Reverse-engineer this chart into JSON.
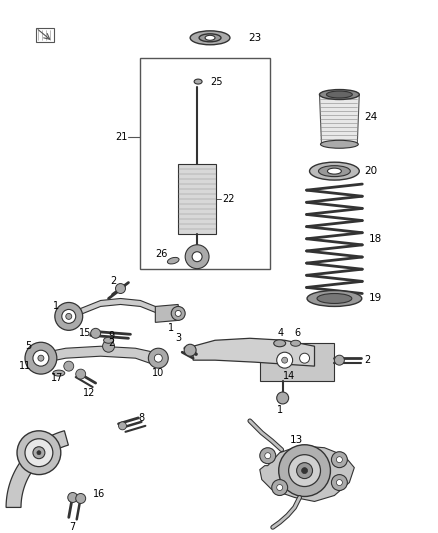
{
  "bg_color": "#ffffff",
  "fig_width": 4.38,
  "fig_height": 5.33,
  "dpi": 100,
  "gray": "#555555",
  "lgray": "#888888",
  "dgray": "#333333",
  "silver": "#aaaaaa",
  "lsilver": "#cccccc",
  "white": "#ffffff"
}
